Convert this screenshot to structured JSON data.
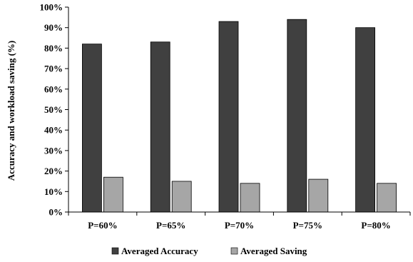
{
  "chart_data": {
    "type": "bar",
    "title": "",
    "xlabel": "",
    "ylabel": "Accuracy  and  workload  saving  (%)",
    "categories": [
      "P=60%",
      "P=65%",
      "P=70%",
      "P=75%",
      "P=80%"
    ],
    "series": [
      {
        "name": "Averaged Accuracy",
        "values": [
          82,
          83,
          93,
          94,
          90
        ],
        "color": "#404040"
      },
      {
        "name": "Averaged Saving",
        "values": [
          17,
          15,
          14,
          16,
          14
        ],
        "color": "#a6a6a6"
      }
    ],
    "ylim": [
      0,
      100
    ],
    "yticks": [
      "0%",
      "10%",
      "20%",
      "30%",
      "40%",
      "50%",
      "60%",
      "70%",
      "80%",
      "90%",
      "100%"
    ],
    "grid": false,
    "legend_position": "bottom"
  }
}
